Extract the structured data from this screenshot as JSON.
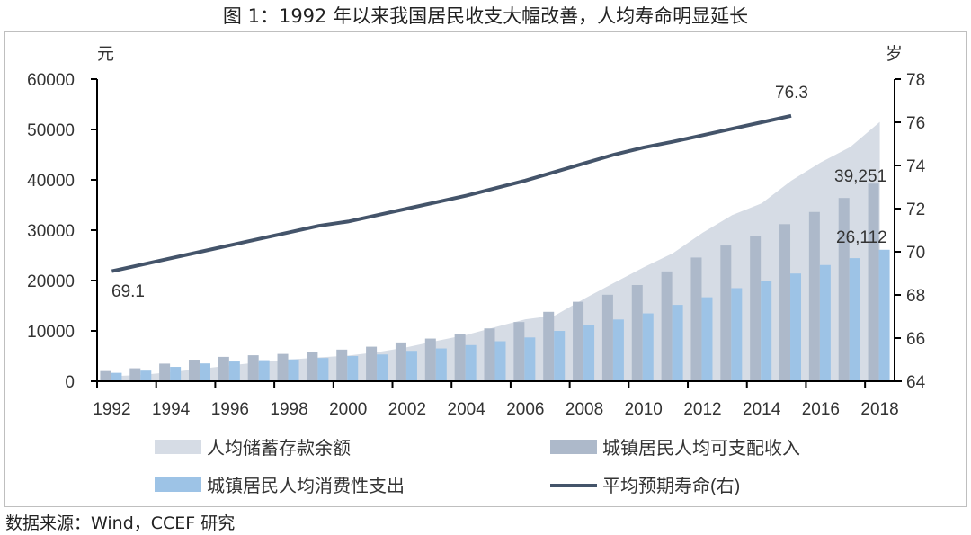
{
  "title": "图 1：1992 年以来我国居民收支大幅改善，人均寿命明显延长",
  "source": "数据来源：Wind，CCEF 研究",
  "chart_data": {
    "type": "bar",
    "title": "图 1：1992 年以来我国居民收支大幅改善，人均寿命明显延长",
    "categories": [
      "1992",
      "1993",
      "1994",
      "1995",
      "1996",
      "1997",
      "1998",
      "1999",
      "2000",
      "2001",
      "2002",
      "2003",
      "2004",
      "2005",
      "2006",
      "2007",
      "2008",
      "2009",
      "2010",
      "2011",
      "2012",
      "2013",
      "2014",
      "2015",
      "2016",
      "2017",
      "2018"
    ],
    "x_tick_labels": [
      "1992",
      "1994",
      "1996",
      "1998",
      "2000",
      "2002",
      "2004",
      "2006",
      "2008",
      "2010",
      "2012",
      "2014",
      "2016",
      "2018"
    ],
    "ylabel": "元",
    "y2label": "岁",
    "ylim": [
      0,
      60000
    ],
    "y_ticks": [
      0,
      10000,
      20000,
      30000,
      40000,
      50000,
      60000
    ],
    "y2lim": [
      64,
      78
    ],
    "y2_ticks": [
      64,
      66,
      68,
      70,
      72,
      74,
      76,
      78
    ],
    "grid": false,
    "legend_position": "bottom",
    "series": [
      {
        "name": "人均储蓄存款余额",
        "type": "area",
        "axis": "left",
        "color": "#d6dce5",
        "values": [
          1000,
          1260,
          1800,
          2450,
          3150,
          3750,
          4280,
          4740,
          5080,
          5780,
          6770,
          8020,
          9200,
          10790,
          12290,
          13060,
          16410,
          19540,
          22620,
          25450,
          29480,
          32990,
          35330,
          39830,
          43460,
          46520,
          51500
        ]
      },
      {
        "name": "城镇居民人均可支配收入",
        "type": "bar",
        "axis": "left",
        "color": "#adb9ca",
        "values": [
          2027,
          2577,
          3496,
          4283,
          4839,
          5160,
          5425,
          5854,
          6280,
          6860,
          7703,
          8472,
          9422,
          10493,
          11759,
          13786,
          15781,
          17175,
          19109,
          21810,
          24565,
          26955,
          28844,
          31195,
          33616,
          36396,
          39251
        ]
      },
      {
        "name": "城镇居民人均消费性支出",
        "type": "bar",
        "axis": "left",
        "color": "#9dc3e6",
        "values": [
          1672,
          2111,
          2851,
          3538,
          3919,
          4186,
          4332,
          4616,
          4998,
          5309,
          6030,
          6511,
          7182,
          7943,
          8697,
          9998,
          11243,
          12265,
          13471,
          15161,
          16674,
          18488,
          19968,
          21392,
          23079,
          24445,
          26112
        ]
      },
      {
        "name": "平均预期寿命(右)",
        "type": "line",
        "axis": "right",
        "color": "#44546a",
        "values": [
          69.1,
          69.4,
          69.7,
          70.0,
          70.3,
          70.6,
          70.9,
          71.2,
          71.4,
          71.7,
          72.0,
          72.3,
          72.6,
          72.95,
          73.3,
          73.7,
          74.1,
          74.5,
          74.83,
          75.1,
          75.4,
          75.7,
          76.0,
          76.3,
          null,
          null,
          null
        ]
      }
    ],
    "annotations": [
      {
        "text": "69.1",
        "series": "平均预期寿命(右)",
        "x": "1992"
      },
      {
        "text": "76.3",
        "series": "平均预期寿命(右)",
        "x": "2015"
      },
      {
        "text": "39,251",
        "series": "城镇居民人均可支配收入",
        "x": "2018"
      },
      {
        "text": "26,112",
        "series": "城镇居民人均消费性支出",
        "x": "2018"
      }
    ]
  }
}
